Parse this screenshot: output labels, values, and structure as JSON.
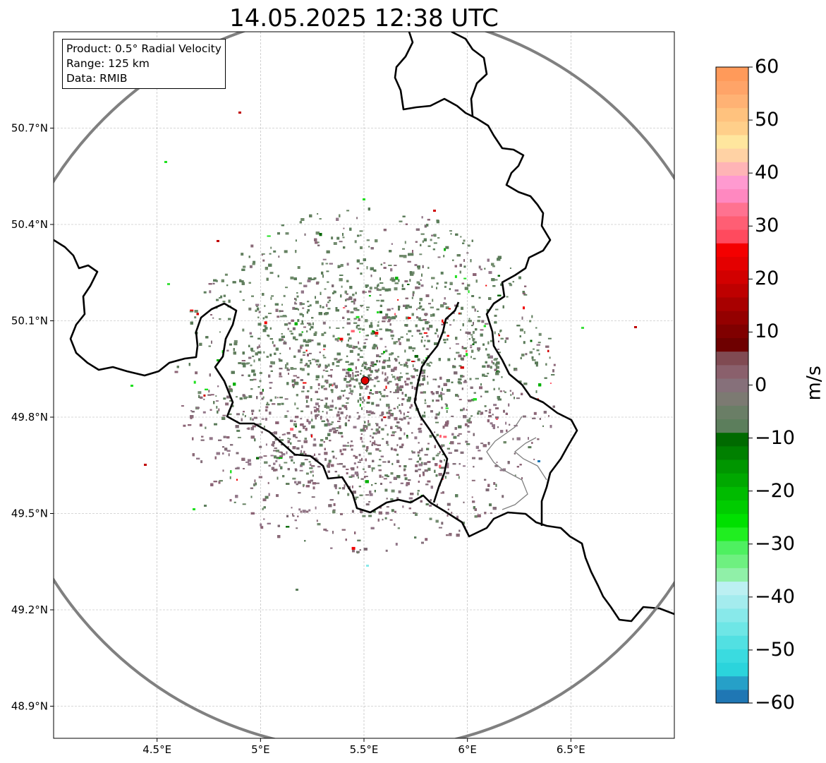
{
  "title": "14.05.2025 12:38 UTC",
  "info": {
    "product": "Product: 0.5° Radial Velocity",
    "range": "Range: 125 km",
    "data": "Data: RMIB"
  },
  "map": {
    "lon_range": [
      4.0,
      7.0
    ],
    "lat_range": [
      48.8,
      51.0
    ],
    "x_ticks": [
      "4.5°E",
      "5°E",
      "5.5°E",
      "6°E",
      "6.5°E"
    ],
    "y_ticks": [
      "50.7°N",
      "50.4°N",
      "50.1°N",
      "49.8°N",
      "49.5°N",
      "49.2°N",
      "48.9°N"
    ],
    "grid": true,
    "radar_site": {
      "lon": 5.505,
      "lat": 49.914
    },
    "range_ring_km": 125,
    "border_color": "#000000",
    "sub_border_color": "#808080",
    "ring_color": "#808080",
    "site_color": "#e00000"
  },
  "colorbar": {
    "unit": "m/s",
    "min": -60,
    "max": 60,
    "ticks": [
      "60",
      "50",
      "40",
      "30",
      "20",
      "10",
      "0",
      "−10",
      "−20",
      "−30",
      "−40",
      "−50",
      "−60"
    ],
    "colors": [
      "#1f77b4",
      "#26a0c8",
      "#2bd4dc",
      "#3adbe0",
      "#52e0e2",
      "#6ee6e6",
      "#88e9ea",
      "#a4ecee",
      "#bcf0f2",
      "#90f0a8",
      "#6ef080",
      "#4ef060",
      "#20ee20",
      "#00e000",
      "#00cc00",
      "#00bb00",
      "#00a800",
      "#009600",
      "#008000",
      "#006a00",
      "#5c7e5c",
      "#6a7e66",
      "#7c7a72",
      "#86707a",
      "#8a606c",
      "#804a52",
      "#6e0000",
      "#800000",
      "#940000",
      "#a80000",
      "#be0000",
      "#d20000",
      "#e40000",
      "#f40000",
      "#ff4a5e",
      "#ff5e74",
      "#ff7290",
      "#ff88c0",
      "#ff9ad0",
      "#ffb4b6",
      "#ffd2a4",
      "#ffe69e",
      "#ffcf8a",
      "#ffc27e",
      "#ffb274",
      "#ffa468",
      "#ff9a5a"
    ]
  }
}
